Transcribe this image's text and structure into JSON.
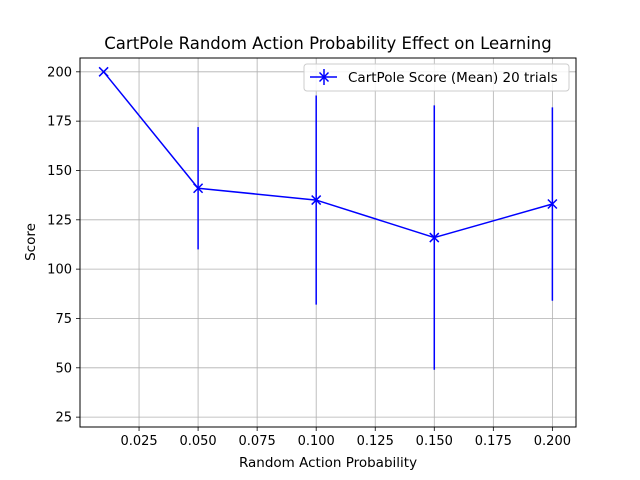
{
  "chart_data": {
    "type": "line",
    "title": "CartPole Random Action Probability Effect on Learning",
    "xlabel": "Random Action Probability",
    "ylabel": "Score",
    "xlim": [
      0.0,
      0.21
    ],
    "ylim": [
      20,
      207
    ],
    "xticks": [
      "0.025",
      "0.050",
      "0.075",
      "0.100",
      "0.125",
      "0.150",
      "0.175",
      "0.200"
    ],
    "yticks": [
      "25",
      "50",
      "75",
      "100",
      "125",
      "150",
      "175",
      "200"
    ],
    "grid": true,
    "legend_position": "top-right",
    "series": [
      {
        "name": "CartPole Score (Mean) 20 trials",
        "color": "#0000ff",
        "marker": "x",
        "x": [
          0.01,
          0.05,
          0.1,
          0.15,
          0.2
        ],
        "y": [
          200,
          141,
          135,
          116,
          133
        ],
        "error_low": [
          200,
          110,
          82,
          49,
          84
        ],
        "error_high": [
          200,
          172,
          188,
          183,
          182
        ]
      }
    ]
  }
}
